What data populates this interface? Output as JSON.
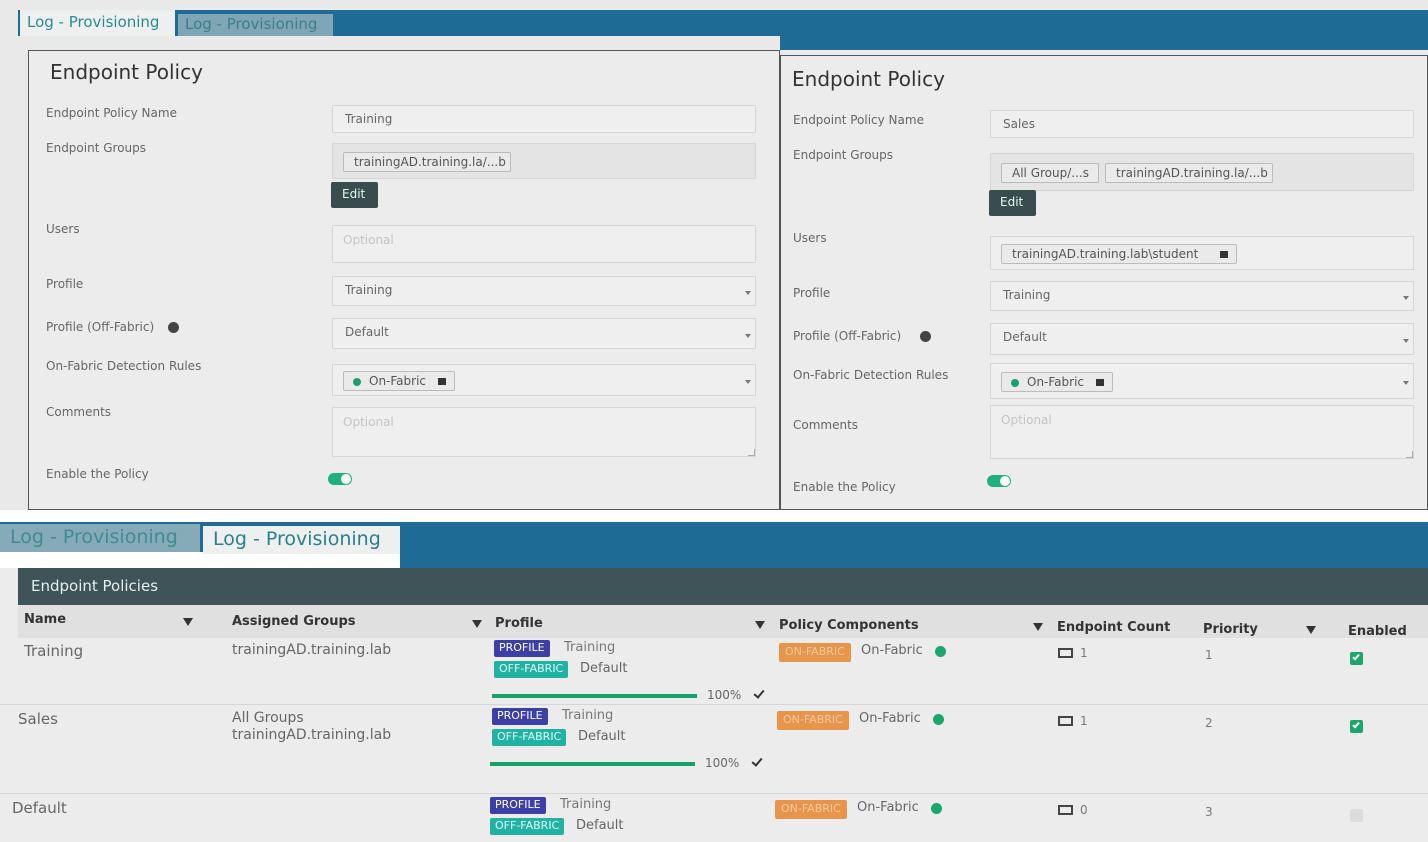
{
  "top_tabs": [
    "Log - Provisioning",
    "Log - Provisioning"
  ],
  "left_form": {
    "title": "Endpoint Policy",
    "fields": [
      {
        "label": "Endpoint Policy Name",
        "value": "Training"
      },
      {
        "label": "Endpoint Groups",
        "tags": [
          "trainingAD.training.la/...b"
        ],
        "button": "Edit"
      },
      {
        "label": "Users",
        "placeholder": "Optional"
      },
      {
        "label": "Profile",
        "value": "Training"
      },
      {
        "label": "Profile (Off-Fabric)",
        "value": "Default"
      },
      {
        "label": "On-Fabric Detection Rules",
        "tags": [
          "On-Fabric"
        ]
      },
      {
        "label": "Comments",
        "placeholder": "Optional"
      },
      {
        "label": "Enable the Policy"
      }
    ]
  },
  "right_form": {
    "title": "Endpoint Policy",
    "fields": [
      {
        "label": "Endpoint Policy Name",
        "value": "Sales"
      },
      {
        "label": "Endpoint Groups",
        "tags": [
          "All Group/...s",
          "trainingAD.training.la/...b"
        ],
        "button": "Edit"
      },
      {
        "label": "Users",
        "tags": [
          "trainingAD.training.lab\\student"
        ]
      },
      {
        "label": "Profile",
        "value": "Training"
      },
      {
        "label": "Profile (Off-Fabric)",
        "value": "Default"
      },
      {
        "label": "On-Fabric Detection Rules",
        "tags": [
          "On-Fabric"
        ]
      },
      {
        "label": "Comments",
        "placeholder": "Optional"
      },
      {
        "label": "Enable the Policy"
      }
    ]
  },
  "bottom_tabs": [
    "Log - Provisioning",
    "Log - Provisioning"
  ],
  "table": {
    "title": "Endpoint Policies",
    "columns": [
      "Name",
      "Assigned Groups",
      "Profile",
      "Policy Components",
      "Endpoint Count",
      "Priority",
      "Enabled"
    ],
    "rows": [
      {
        "name": "Training",
        "groups": [
          "trainingAD.training.lab"
        ],
        "profile_badge": "PROFILE",
        "profile": "Training",
        "off_badge": "OFF-FABRIC",
        "off_profile": "Default",
        "progress": {
          "value": 100,
          "label": "100%"
        },
        "component_badge": "ON-FABRIC",
        "component": "On-Fabric",
        "count": "1",
        "priority": "1",
        "enabled": true
      },
      {
        "name": "Sales",
        "groups": [
          "All Groups",
          "trainingAD.training.lab"
        ],
        "profile_badge": "PROFILE",
        "profile": "Training",
        "off_badge": "OFF-FABRIC",
        "off_profile": "Default",
        "progress": {
          "value": 100,
          "label": "100%"
        },
        "component_badge": "ON-FABRIC",
        "component": "On-Fabric",
        "count": "1",
        "priority": "2",
        "enabled": true
      },
      {
        "name": "Default",
        "groups": [],
        "profile_badge": "PROFILE",
        "profile": "Training",
        "off_badge": "OFF-FABRIC",
        "off_profile": "Default",
        "component_badge": "ON-FABRIC",
        "component": "On-Fabric",
        "count": "0",
        "priority": "3",
        "enabled": false
      }
    ]
  }
}
